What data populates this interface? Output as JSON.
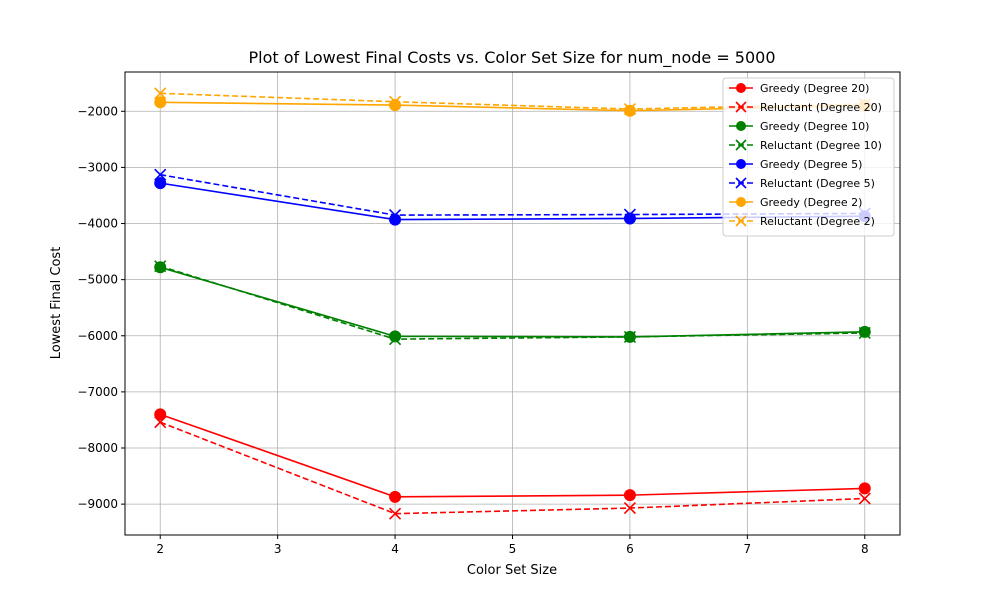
{
  "chart_data": {
    "type": "line",
    "title": "Plot of Lowest Final Costs vs. Color Set Size for num_node = 5000",
    "xlabel": "Color Set Size",
    "ylabel": "Lowest Final Cost",
    "x": [
      2,
      4,
      6,
      8
    ],
    "xlim": [
      1.7,
      8.3
    ],
    "ylim": [
      -9550,
      -1300
    ],
    "xticks": [
      2,
      3,
      4,
      5,
      6,
      7,
      8
    ],
    "yticks": [
      -9000,
      -8000,
      -7000,
      -6000,
      -5000,
      -4000,
      -3000,
      -2000
    ],
    "grid": true,
    "legend_position": "top-right",
    "series": [
      {
        "name": "Greedy (Degree 20)",
        "values": [
          -7400,
          -8870,
          -8840,
          -8720
        ],
        "color": "#ff0000",
        "style": "solid",
        "marker": "circle"
      },
      {
        "name": "Reluctant (Degree 20)",
        "values": [
          -7540,
          -9170,
          -9070,
          -8900
        ],
        "color": "#ff0000",
        "style": "dashed",
        "marker": "x"
      },
      {
        "name": "Greedy (Degree 10)",
        "values": [
          -4780,
          -6010,
          -6020,
          -5930
        ],
        "color": "#008000",
        "style": "solid",
        "marker": "circle"
      },
      {
        "name": "Reluctant (Degree 10)",
        "values": [
          -4760,
          -6060,
          -6020,
          -5950
        ],
        "color": "#008000",
        "style": "dashed",
        "marker": "x"
      },
      {
        "name": "Greedy (Degree 5)",
        "values": [
          -3280,
          -3930,
          -3910,
          -3870
        ],
        "color": "#0000ff",
        "style": "solid",
        "marker": "circle"
      },
      {
        "name": "Reluctant (Degree 5)",
        "values": [
          -3130,
          -3850,
          -3840,
          -3820
        ],
        "color": "#0000ff",
        "style": "dashed",
        "marker": "x"
      },
      {
        "name": "Greedy (Degree 2)",
        "values": [
          -1840,
          -1890,
          -1990,
          -1900
        ],
        "color": "#ffa500",
        "style": "solid",
        "marker": "circle"
      },
      {
        "name": "Reluctant (Degree 2)",
        "values": [
          -1680,
          -1830,
          -1960,
          -1870
        ],
        "color": "#ffa500",
        "style": "dashed",
        "marker": "x"
      }
    ]
  }
}
